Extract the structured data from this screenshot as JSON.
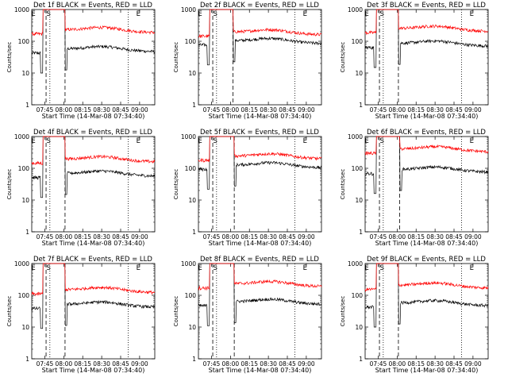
{
  "chart_data": [
    {
      "type": "line",
      "title": "Det 1f BLACK = Events, RED = LLD",
      "xlabel": "Start Time (14-Mar-08 07:34:40)",
      "ylabel": "Counts/sec",
      "xticks": [
        "07:45",
        "08:00",
        "08:15",
        "08:30",
        "08:45",
        "09:00"
      ],
      "yticks": [
        "1",
        "10",
        "100",
        "1000"
      ],
      "ylim": [
        1,
        1000
      ],
      "yscale": "log",
      "markers": [
        {
          "label": "E",
          "time": "07:36"
        },
        {
          "label": "S",
          "time": "07:48"
        },
        {
          "label": "E",
          "time": "08:59"
        }
      ],
      "dashed_lines": [
        "07:46",
        "08:01"
      ],
      "dotted_lines": [
        "07:49",
        "08:51"
      ],
      "series": [
        {
          "color": "#000000",
          "base": "50"
        },
        {
          "color": "#ff0000",
          "base": "200"
        }
      ]
    },
    {
      "type": "line",
      "title": "Det 2f BLACK = Events, RED = LLD",
      "xlabel": "Start Time (14-Mar-08 07:34:40)",
      "ylabel": "Counts/sec",
      "xticks": [
        "07:45",
        "08:00",
        "08:15",
        "08:30",
        "08:45",
        "09:00"
      ],
      "yticks": [
        "1",
        "10",
        "100",
        "1000"
      ],
      "ylim": [
        1,
        1000
      ],
      "yscale": "log",
      "markers": [
        {
          "label": "E",
          "time": "07:36"
        },
        {
          "label": "S",
          "time": "07:48"
        },
        {
          "label": "E",
          "time": "08:59"
        }
      ],
      "dashed_lines": [
        "07:46",
        "08:02"
      ],
      "dotted_lines": [
        "07:49",
        "08:51"
      ],
      "series": [
        {
          "color": "#000000",
          "base": "90"
        },
        {
          "color": "#ff0000",
          "base": "170"
        }
      ]
    },
    {
      "type": "line",
      "title": "Det 3f BLACK = Events, RED = LLD",
      "xlabel": "Start Time (14-Mar-08 07:34:40)",
      "ylabel": "Counts/sec",
      "xticks": [
        "07:45",
        "08:00",
        "08:15",
        "08:30",
        "08:45",
        "09:00"
      ],
      "yticks": [
        "1",
        "10",
        "100",
        "1000"
      ],
      "ylim": [
        1,
        1000
      ],
      "yscale": "log",
      "markers": [
        {
          "label": "E",
          "time": "07:36"
        },
        {
          "label": "S",
          "time": "07:48"
        },
        {
          "label": "E",
          "time": "08:59"
        }
      ],
      "dashed_lines": [
        "07:46",
        "08:01"
      ],
      "dotted_lines": [
        "07:49",
        "08:51"
      ],
      "series": [
        {
          "color": "#000000",
          "base": "75"
        },
        {
          "color": "#ff0000",
          "base": "220"
        }
      ]
    },
    {
      "type": "line",
      "title": "Det 4f BLACK = Events, RED = LLD",
      "xlabel": "Start Time (14-Mar-08 07:34:40)",
      "ylabel": "Counts/sec",
      "xticks": [
        "07:45",
        "08:00",
        "08:15",
        "08:30",
        "08:45",
        "09:00"
      ],
      "yticks": [
        "1",
        "10",
        "100",
        "1000"
      ],
      "ylim": [
        1,
        1000
      ],
      "yscale": "log",
      "markers": [
        {
          "label": "E",
          "time": "07:36"
        },
        {
          "label": "S",
          "time": "07:48"
        },
        {
          "label": "E",
          "time": "08:59"
        }
      ],
      "dashed_lines": [
        "07:46",
        "08:01"
      ],
      "dotted_lines": [
        "07:49",
        "08:51"
      ],
      "series": [
        {
          "color": "#000000",
          "base": "60"
        },
        {
          "color": "#ff0000",
          "base": "170"
        }
      ]
    },
    {
      "type": "line",
      "title": "Det 5f BLACK = Events, RED = LLD",
      "xlabel": "Start Time (14-Mar-08 07:34:40)",
      "ylabel": "Counts/sec",
      "xticks": [
        "07:45",
        "08:00",
        "08:15",
        "08:30",
        "08:45",
        "09:00"
      ],
      "yticks": [
        "1",
        "10",
        "100",
        "1000"
      ],
      "ylim": [
        1,
        1000
      ],
      "yscale": "log",
      "markers": [
        {
          "label": "E",
          "time": "07:36"
        },
        {
          "label": "S",
          "time": "07:48"
        },
        {
          "label": "E",
          "time": "08:59"
        }
      ],
      "dashed_lines": [
        "07:46",
        "08:03"
      ],
      "dotted_lines": [
        "07:49",
        "08:51"
      ],
      "series": [
        {
          "color": "#000000",
          "base": "110"
        },
        {
          "color": "#ff0000",
          "base": "210"
        }
      ]
    },
    {
      "type": "line",
      "title": "Det 6f BLACK = Events, RED = LLD",
      "xlabel": "Start Time (14-Mar-08 07:34:40)",
      "ylabel": "Counts/sec",
      "xticks": [
        "07:45",
        "08:00",
        "08:15",
        "08:30",
        "08:45",
        "09:00"
      ],
      "yticks": [
        "1",
        "10",
        "100",
        "1000"
      ],
      "ylim": [
        1,
        1000
      ],
      "yscale": "log",
      "markers": [
        {
          "label": "E",
          "time": "07:36"
        },
        {
          "label": "S",
          "time": "07:48"
        },
        {
          "label": "E",
          "time": "08:59"
        }
      ],
      "dashed_lines": [
        "07:46",
        "08:02"
      ],
      "dotted_lines": [
        "07:49",
        "08:51"
      ],
      "series": [
        {
          "color": "#000000",
          "base": "80"
        },
        {
          "color": "#ff0000",
          "base": "350"
        }
      ]
    },
    {
      "type": "line",
      "title": "Det 7f BLACK = Events, RED = LLD",
      "xlabel": "Start Time (14-Mar-08 07:34:40)",
      "ylabel": "Counts/sec",
      "xticks": [
        "07:45",
        "08:00",
        "08:15",
        "08:30",
        "08:45",
        "09:00"
      ],
      "yticks": [
        "1",
        "10",
        "100",
        "1000"
      ],
      "ylim": [
        1,
        1000
      ],
      "yscale": "log",
      "markers": [
        {
          "label": "E",
          "time": "07:36"
        },
        {
          "label": "S",
          "time": "07:48"
        },
        {
          "label": "E",
          "time": "08:59"
        }
      ],
      "dashed_lines": [
        "07:46",
        "08:01"
      ],
      "dotted_lines": [
        "07:49",
        "08:51"
      ],
      "series": [
        {
          "color": "#000000",
          "base": "45"
        },
        {
          "color": "#ff0000",
          "base": "130"
        }
      ]
    },
    {
      "type": "line",
      "title": "Det 8f BLACK = Events, RED = LLD",
      "xlabel": "Start Time (14-Mar-08 07:34:40)",
      "ylabel": "Counts/sec",
      "xticks": [
        "07:45",
        "08:00",
        "08:15",
        "08:30",
        "08:45",
        "09:00"
      ],
      "yticks": [
        "1",
        "10",
        "100",
        "1000"
      ],
      "ylim": [
        1,
        1000
      ],
      "yscale": "log",
      "markers": [
        {
          "label": "E",
          "time": "07:36"
        },
        {
          "label": "S",
          "time": "07:48"
        },
        {
          "label": "E",
          "time": "08:59"
        }
      ],
      "dashed_lines": [
        "07:46",
        "08:03"
      ],
      "dotted_lines": [
        "07:49",
        "08:51"
      ],
      "series": [
        {
          "color": "#000000",
          "base": "55"
        },
        {
          "color": "#ff0000",
          "base": "200"
        }
      ]
    },
    {
      "type": "line",
      "title": "Det 9f BLACK = Events, RED = LLD",
      "xlabel": "Start Time (14-Mar-08 07:34:40)",
      "ylabel": "Counts/sec",
      "xticks": [
        "07:45",
        "08:00",
        "08:15",
        "08:30",
        "08:45",
        "09:00"
      ],
      "yticks": [
        "1",
        "10",
        "100",
        "1000"
      ],
      "ylim": [
        1,
        1000
      ],
      "yscale": "log",
      "markers": [
        {
          "label": "E",
          "time": "07:36"
        },
        {
          "label": "S",
          "time": "07:48"
        },
        {
          "label": "E",
          "time": "08:59"
        }
      ],
      "dashed_lines": [
        "07:46",
        "08:01"
      ],
      "dotted_lines": [
        "07:49",
        "08:51"
      ],
      "series": [
        {
          "color": "#000000",
          "base": "50"
        },
        {
          "color": "#ff0000",
          "base": "180"
        }
      ]
    }
  ]
}
